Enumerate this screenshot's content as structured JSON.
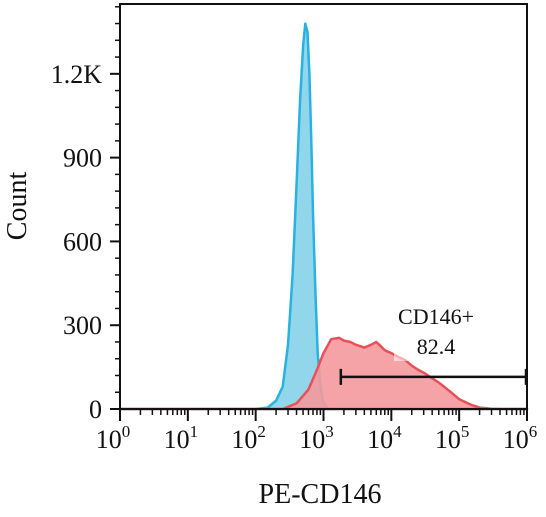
{
  "chart_data": {
    "type": "area",
    "title": "",
    "xlabel": "PE-CD146",
    "ylabel": "Count",
    "xscale": "log",
    "xlim": [
      1,
      1000000
    ],
    "ylim": [
      0,
      1450
    ],
    "x_ticks": [
      {
        "base": "10",
        "exp": "0",
        "value": 1
      },
      {
        "base": "10",
        "exp": "1",
        "value": 10
      },
      {
        "base": "10",
        "exp": "2",
        "value": 100
      },
      {
        "base": "10",
        "exp": "3",
        "value": 1000
      },
      {
        "base": "10",
        "exp": "4",
        "value": 10000
      },
      {
        "base": "10",
        "exp": "5",
        "value": 100000
      },
      {
        "base": "10",
        "exp": "6",
        "value": 1000000
      }
    ],
    "y_ticks": [
      {
        "label": "0",
        "value": 0
      },
      {
        "label": "300",
        "value": 300
      },
      {
        "label": "600",
        "value": 600
      },
      {
        "label": "900",
        "value": 900
      },
      {
        "label": "1.2K",
        "value": 1200
      }
    ],
    "grid": false,
    "legend": "none",
    "series": [
      {
        "key": "control",
        "fill": "#7fcfe8",
        "stroke": "#29b2e0",
        "x": [
          1,
          100,
          150,
          200,
          250,
          300,
          350,
          400,
          450,
          500,
          540,
          580,
          620,
          660,
          700,
          760,
          820,
          900,
          1000,
          1200,
          1000000
        ],
        "y": [
          0,
          0,
          5,
          30,
          80,
          230,
          480,
          800,
          1100,
          1300,
          1380,
          1350,
          1200,
          960,
          700,
          420,
          200,
          80,
          20,
          0,
          0
        ]
      },
      {
        "key": "cd146",
        "fill": "#f4999c",
        "stroke": "#e8505a",
        "x": [
          1,
          250,
          400,
          600,
          800,
          1000,
          1300,
          1700,
          2000,
          2500,
          3000,
          3500,
          4000,
          5000,
          6000,
          7000,
          8000,
          10000,
          13000,
          16000,
          20000,
          25000,
          30000,
          40000,
          50000,
          60000,
          80000,
          100000,
          150000,
          200000,
          300000,
          400000,
          1000000
        ],
        "y": [
          0,
          0,
          20,
          70,
          140,
          200,
          250,
          255,
          245,
          240,
          230,
          225,
          220,
          230,
          240,
          225,
          210,
          200,
          185,
          175,
          155,
          140,
          130,
          110,
          95,
          80,
          55,
          35,
          15,
          5,
          1,
          0,
          0
        ]
      }
    ],
    "annotations": [
      {
        "type": "gate",
        "label": "CD146+",
        "value": "82.4",
        "x_start": 1800,
        "x_end": 1000000,
        "y": 115
      }
    ],
    "colors": {
      "control": "#29b2e0",
      "cd146": "#e8505a",
      "axis": "#111111"
    }
  }
}
